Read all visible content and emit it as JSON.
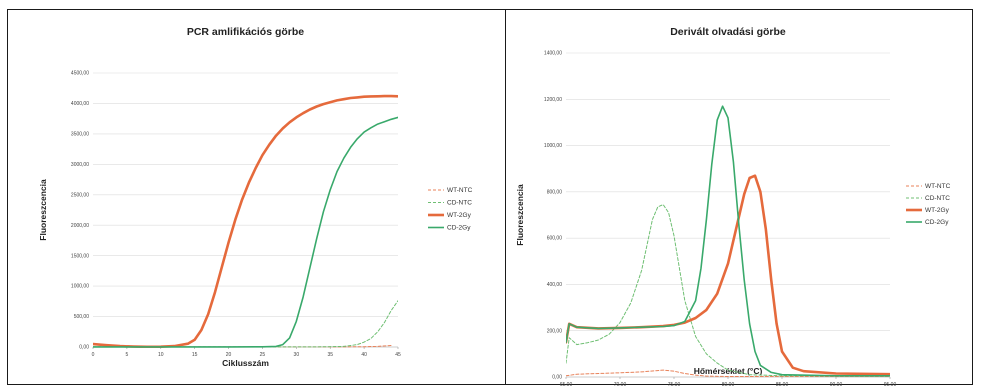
{
  "chart_data": [
    {
      "type": "line",
      "title": "PCR amlifikációs görbe",
      "xlabel": "Ciklusszám",
      "ylabel": "Fluoreszcencia",
      "xlim": [
        0,
        45
      ],
      "ylim": [
        0,
        4500
      ],
      "x_ticks": [
        "0",
        "5",
        "10",
        "15",
        "20",
        "25",
        "30",
        "35",
        "40",
        "45"
      ],
      "y_ticks": [
        "0,00",
        "500,00",
        "1000,00",
        "1500,00",
        "2000,00",
        "2500,00",
        "3000,00",
        "3500,00",
        "4000,00",
        "4500,00"
      ],
      "legend_position": "right",
      "grid": "horizontal",
      "series": [
        {
          "name": "WT-NTC",
          "color": "#e8825a",
          "dash": "3,2",
          "width": 1,
          "x": [
            0,
            2,
            5,
            10,
            15,
            20,
            25,
            30,
            35,
            38,
            40,
            42,
            44
          ],
          "y": [
            2,
            2,
            2,
            2,
            2,
            2,
            2,
            2,
            2,
            3,
            5,
            10,
            25
          ]
        },
        {
          "name": "CD-NTC",
          "color": "#6fbf73",
          "dash": "3,2",
          "width": 1,
          "x": [
            0,
            2,
            5,
            10,
            15,
            20,
            25,
            30,
            34,
            37,
            39,
            40,
            41,
            42,
            43,
            44,
            45
          ],
          "y": [
            2,
            2,
            2,
            2,
            2,
            2,
            2,
            2,
            3,
            10,
            40,
            80,
            140,
            250,
            400,
            600,
            760
          ]
        },
        {
          "name": "WT-2Gy",
          "color": "#e56a3c",
          "dash": "",
          "width": 2.6,
          "x": [
            0,
            2,
            4,
            6,
            8,
            10,
            12,
            14,
            15,
            16,
            17,
            18,
            19,
            20,
            21,
            22,
            23,
            24,
            25,
            26,
            27,
            28,
            29,
            30,
            31,
            32,
            33,
            34,
            35,
            36,
            37,
            38,
            39,
            40,
            41,
            42,
            43,
            44,
            45
          ],
          "y": [
            48,
            30,
            15,
            6,
            3,
            5,
            15,
            55,
            120,
            280,
            540,
            900,
            1310,
            1720,
            2090,
            2420,
            2700,
            2940,
            3150,
            3320,
            3470,
            3590,
            3690,
            3770,
            3840,
            3900,
            3950,
            3990,
            4020,
            4050,
            4070,
            4090,
            4100,
            4110,
            4115,
            4118,
            4120,
            4120,
            4118
          ]
        },
        {
          "name": "CD-2Gy",
          "color": "#39a96b",
          "dash": "",
          "width": 1.6,
          "x": [
            0,
            5,
            10,
            15,
            20,
            25,
            27,
            28,
            29,
            30,
            31,
            32,
            33,
            34,
            35,
            36,
            37,
            38,
            39,
            40,
            41,
            42,
            43,
            44,
            45
          ],
          "y": [
            2,
            2,
            2,
            2,
            2,
            3,
            10,
            40,
            150,
            420,
            820,
            1300,
            1780,
            2220,
            2580,
            2880,
            3100,
            3280,
            3420,
            3530,
            3600,
            3660,
            3700,
            3740,
            3770
          ]
        }
      ]
    },
    {
      "type": "line",
      "title": "Derivált olvadási görbe",
      "xlabel": "Hőmérséklet (°C)",
      "ylabel": "Fluoreszcencia",
      "xlim": [
        65,
        95
      ],
      "ylim": [
        0,
        1400
      ],
      "x_ticks": [
        "65,00",
        "70,00",
        "75,00",
        "80,00",
        "85,00",
        "90,00",
        "95,00"
      ],
      "y_ticks": [
        "0,00",
        "200,00",
        "400,00",
        "600,00",
        "800,00",
        "1000,00",
        "1200,00",
        "1400,00"
      ],
      "legend_position": "right",
      "grid": "horizontal",
      "series": [
        {
          "name": "WT-NTC",
          "color": "#e8825a",
          "dash": "3,2",
          "width": 1,
          "x": [
            65,
            66,
            68,
            70,
            72,
            73,
            74,
            75,
            76,
            77,
            78,
            80,
            85,
            90,
            95
          ],
          "y": [
            5,
            12,
            15,
            18,
            22,
            26,
            30,
            25,
            15,
            8,
            4,
            2,
            2,
            2,
            2
          ]
        },
        {
          "name": "CD-NTC",
          "color": "#6fbf73",
          "dash": "3,2",
          "width": 1,
          "x": [
            65,
            65.3,
            66,
            67,
            68,
            69,
            70,
            71,
            72,
            72.5,
            73,
            73.5,
            74,
            74.5,
            75,
            75.5,
            76,
            77,
            78,
            79,
            80,
            82,
            85,
            90,
            95
          ],
          "y": [
            60,
            170,
            140,
            148,
            160,
            185,
            235,
            320,
            460,
            570,
            680,
            735,
            745,
            710,
            610,
            470,
            330,
            175,
            100,
            60,
            30,
            10,
            5,
            5,
            5
          ]
        },
        {
          "name": "WT-2Gy",
          "color": "#e56a3c",
          "dash": "",
          "width": 2.6,
          "x": [
            65,
            65.3,
            66,
            68,
            70,
            72,
            74,
            75,
            76,
            77,
            78,
            79,
            80,
            81,
            81.5,
            82,
            82.5,
            83,
            83.5,
            84,
            84.5,
            85,
            86,
            87,
            90,
            95
          ],
          "y": [
            150,
            230,
            215,
            210,
            212,
            215,
            220,
            225,
            235,
            255,
            290,
            360,
            490,
            690,
            790,
            860,
            870,
            800,
            640,
            420,
            230,
            110,
            40,
            25,
            15,
            12
          ]
        },
        {
          "name": "CD-2Gy",
          "color": "#39a96b",
          "dash": "",
          "width": 1.6,
          "x": [
            65,
            65.3,
            66,
            68,
            70,
            72,
            74,
            75,
            76,
            77,
            77.5,
            78,
            78.5,
            79,
            79.5,
            80,
            80.5,
            81,
            81.5,
            82,
            82.5,
            83,
            84,
            85,
            90,
            95
          ],
          "y": [
            150,
            230,
            215,
            210,
            212,
            215,
            218,
            222,
            240,
            330,
            470,
            680,
            920,
            1110,
            1170,
            1120,
            930,
            660,
            420,
            230,
            110,
            50,
            20,
            10,
            5,
            5
          ]
        }
      ]
    }
  ]
}
